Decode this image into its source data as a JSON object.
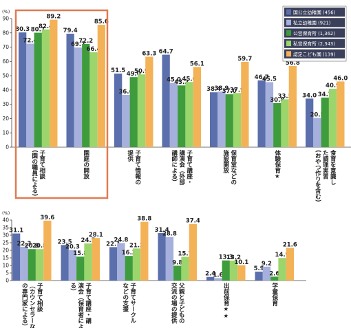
{
  "chart_data": [
    {
      "type": "bar",
      "unit": "(%)",
      "ylim": [
        0,
        90
      ],
      "yticks": [
        0,
        10,
        20,
        30,
        40,
        50,
        60,
        70,
        80,
        90
      ],
      "categories": [
        [
          "子育て相談",
          "(園の職員による)"
        ],
        [
          "園庭の開放"
        ],
        [
          "子育て情報の",
          "提供"
        ],
        [
          "子育て講座・",
          "講演会（外部",
          "講師による）"
        ],
        [
          "保育室などの",
          "施設開放"
        ],
        [
          "体験保育★"
        ],
        [
          "食育を意識し",
          "た調理実習",
          "(おやつ作りを含む)"
        ]
      ],
      "series": [
        {
          "name": "国公立幼稚園 (456)",
          "color": "#5b6fad",
          "values": [
            80.3,
            79.4,
            51.5,
            64.7,
            38.4,
            46.7,
            34.0
          ]
        },
        {
          "name": "私立幼稚園 (921)",
          "color": "#a6b0dd",
          "values": [
            72.4,
            69.7,
            36.6,
            45.0,
            38.9,
            45.5,
            20.5
          ]
        },
        {
          "name": "公営保育所 (1,362)",
          "color": "#3f9c3c",
          "values": [
            80.1,
            72.2,
            49.0,
            43.2,
            37.0,
            30.8,
            34.7
          ]
        },
        {
          "name": "私営保育所 (2,343)",
          "color": "#9bd56b",
          "values": [
            82.4,
            66.4,
            50.9,
            45.6,
            37.9,
            33.5,
            40.9
          ]
        },
        {
          "name": "認定こども園 (139)",
          "color": "#f4b257",
          "values": [
            89.2,
            85.6,
            63.3,
            56.1,
            59.7,
            56.8,
            46.0
          ]
        }
      ],
      "legend": "top-right",
      "highlight_categories": [
        0,
        1
      ]
    },
    {
      "type": "bar",
      "unit": "(%)",
      "ylim": [
        0,
        40
      ],
      "yticks": [
        0,
        5,
        10,
        15,
        20,
        25,
        30,
        35,
        40
      ],
      "categories": [
        [
          "子育て相談",
          "（カウンセラーなど",
          "の専門家による）"
        ],
        [
          "子育て講座・講",
          "演会（保育者によ",
          "る）"
        ],
        [
          "子育てサークル",
          "などの支援"
        ],
        [
          "父親と子どもの",
          "交流の場の提供"
        ],
        [
          "出前保育★★"
        ],
        [
          "学童保育"
        ]
      ],
      "series": [
        {
          "name": "国公立幼稚園",
          "values": [
            31.1,
            23.5,
            22.1,
            31.4,
            2.4,
            5.9
          ]
        },
        {
          "name": "私立幼稚園",
          "values": [
            22.3,
            20.3,
            24.8,
            28.8,
            1.6,
            9.2
          ]
        },
        {
          "name": "公営保育所",
          "values": [
            20.8,
            15.8,
            16.3,
            9.8,
            13.3,
            2.6
          ]
        },
        {
          "name": "私営保育所",
          "values": [
            20.8,
            24.5,
            21.2,
            15.7,
            13.2,
            14.9
          ]
        },
        {
          "name": "認定こども園",
          "values": [
            39.6,
            28.1,
            38.8,
            37.4,
            10.1,
            21.6
          ]
        }
      ]
    }
  ]
}
